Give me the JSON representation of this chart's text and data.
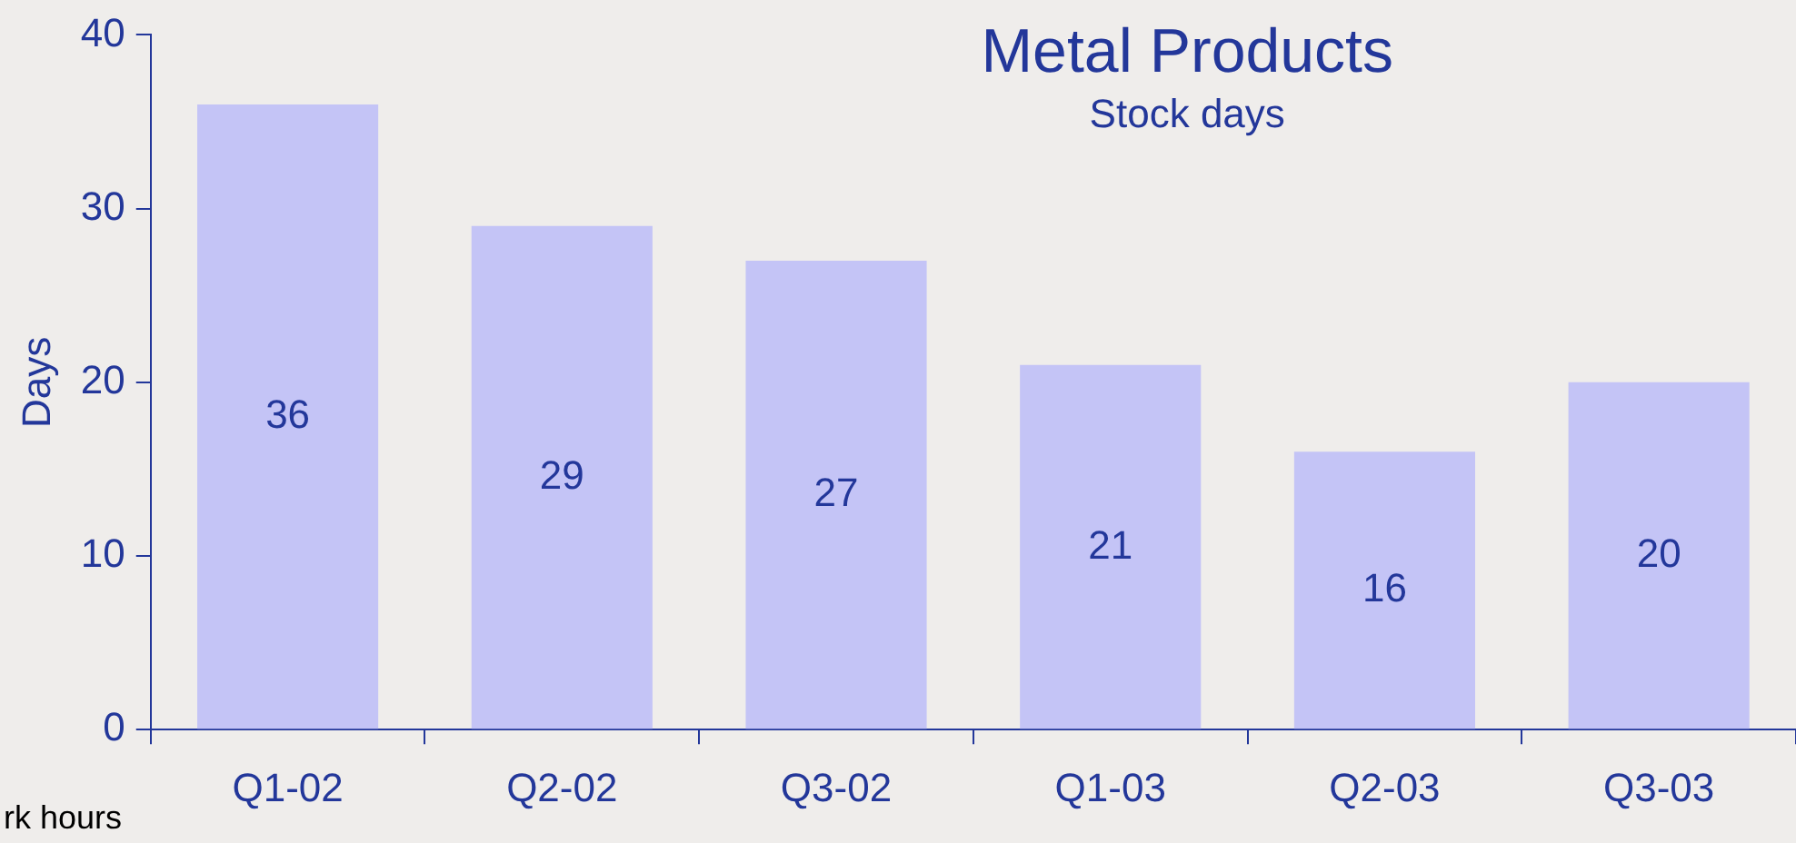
{
  "chart_data": {
    "type": "bar",
    "title": "Metal Products",
    "subtitle": "Stock days",
    "ylabel": "Days",
    "categories": [
      "Q1-02",
      "Q2-02",
      "Q3-02",
      "Q1-03",
      "Q2-03",
      "Q3-03"
    ],
    "values": [
      36,
      29,
      27,
      21,
      16,
      20
    ],
    "color": "#c4c4f6",
    "ylim": [
      0,
      40
    ],
    "yticks": [
      0,
      10,
      20,
      30,
      40
    ],
    "grid": false,
    "legend": false,
    "data_labels": true,
    "annotations": [
      "rk hours"
    ]
  }
}
